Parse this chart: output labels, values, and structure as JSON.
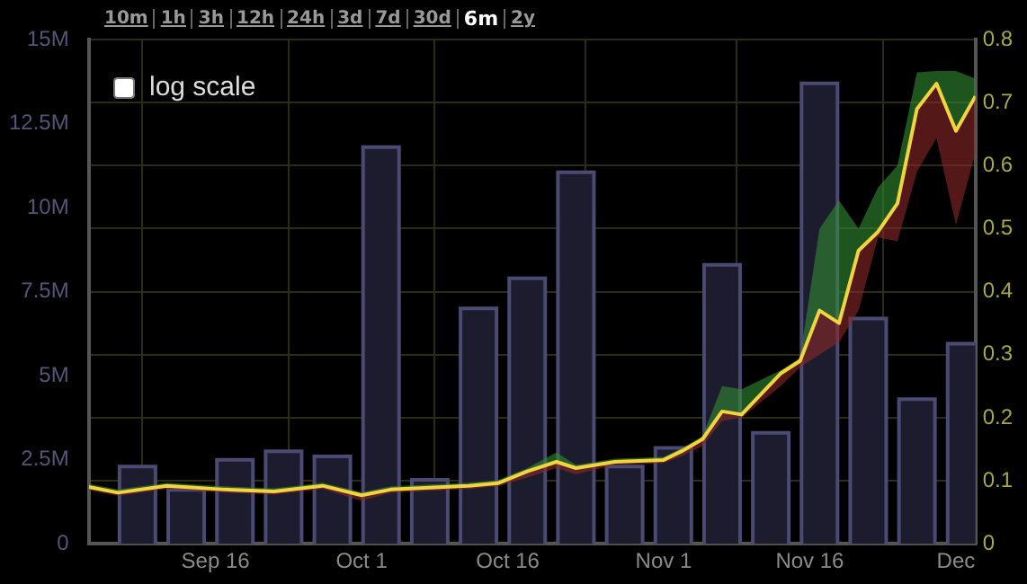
{
  "chart_data": {
    "type": "bar",
    "x": [
      "--09-08",
      "--09-13",
      "--09-18",
      "--09-23",
      "--09-28",
      "--10-03",
      "--10-08",
      "--10-13",
      "--10-18",
      "--10-23",
      "--10-28",
      "--11-02",
      "--11-07",
      "--11-12",
      "--11-17",
      "--11-22",
      "--11-27",
      "--12-02"
    ],
    "series": [
      {
        "color": "#1c1c2e",
        "values": [
          2300000,
          1600000,
          2500000,
          2750000,
          2600000,
          11800000,
          1900000,
          7000000,
          7900000,
          11050000,
          2300000,
          2850000,
          8300000,
          3300000,
          13700000,
          6700000,
          4300000,
          5950000
        ]
      },
      {
        "type": "line",
        "axis": "y2",
        "color": "#f2d43c",
        "x": [
          "--09-03",
          "--09-06",
          "--09-11",
          "--09-17",
          "--09-22",
          "--09-27",
          "--10-01",
          "--10-04",
          "--10-12",
          "--10-15",
          "--10-18",
          "--10-21",
          "--10-23",
          "--10-27",
          "--11-01",
          "--11-03",
          "--11-05",
          "--11-07",
          "--11-09",
          "--11-13",
          "--11-15",
          "--11-17",
          "--11-19",
          "--11-21",
          "--11-23",
          "--11-25",
          "--11-27",
          "--11-29",
          "--12-01",
          "--12-03"
        ],
        "values": [
          0.09,
          0.081,
          0.092,
          0.086,
          0.083,
          0.092,
          0.077,
          0.086,
          0.092,
          0.096,
          0.115,
          0.13,
          0.12,
          0.13,
          0.133,
          0.148,
          0.166,
          0.21,
          0.205,
          0.27,
          0.29,
          0.37,
          0.35,
          0.465,
          0.495,
          0.54,
          0.69,
          0.73,
          0.655,
          0.71
        ],
        "upper": [
          0.095,
          0.086,
          0.097,
          0.091,
          0.088,
          0.097,
          0.082,
          0.091,
          0.097,
          0.101,
          0.12,
          0.145,
          0.125,
          0.135,
          0.138,
          0.153,
          0.171,
          0.25,
          0.245,
          0.275,
          0.295,
          0.5,
          0.545,
          0.5,
          0.565,
          0.6,
          0.748,
          0.75,
          0.75,
          0.738
        ],
        "lower": [
          0.085,
          0.076,
          0.087,
          0.081,
          0.078,
          0.087,
          0.068,
          0.081,
          0.087,
          0.091,
          0.105,
          0.12,
          0.11,
          0.125,
          0.128,
          0.14,
          0.155,
          0.195,
          0.2,
          0.25,
          0.28,
          0.3,
          0.32,
          0.37,
          0.486,
          0.48,
          0.59,
          0.644,
          0.506,
          0.62
        ]
      }
    ],
    "xlim": [
      "--09-03",
      "--12-03"
    ],
    "xticks": [
      {
        "value": "--09-16",
        "label": "Sep 16"
      },
      {
        "value": "--10-01",
        "label": "Oct 1"
      },
      {
        "value": "--10-16",
        "label": "Oct 16"
      },
      {
        "value": "--11-01",
        "label": "Nov 1"
      },
      {
        "value": "--11-16",
        "label": "Nov 16"
      },
      {
        "value": "--12-01",
        "label": "Dec"
      }
    ],
    "ylim": [
      0,
      15000000
    ],
    "yticks": [
      {
        "value": 0,
        "label": "0"
      },
      {
        "value": 2500000,
        "label": "2.5M"
      },
      {
        "value": 5000000,
        "label": "5M"
      },
      {
        "value": 7500000,
        "label": "7.5M"
      },
      {
        "value": 10000000,
        "label": "10M"
      },
      {
        "value": 12500000,
        "label": "12.5M"
      },
      {
        "value": 15000000,
        "label": "15M"
      }
    ],
    "y2lim": [
      0,
      0.8
    ],
    "y2ticks": [
      0,
      0.1,
      0.2,
      0.3,
      0.4,
      0.5,
      0.6,
      0.7,
      0.8
    ],
    "grid": true,
    "legend": false,
    "annotations": [
      "10m",
      "1h",
      "3h",
      "12h",
      "24h",
      "3d",
      "7d",
      "30d",
      "6m",
      "2y",
      "log scale"
    ]
  }
}
